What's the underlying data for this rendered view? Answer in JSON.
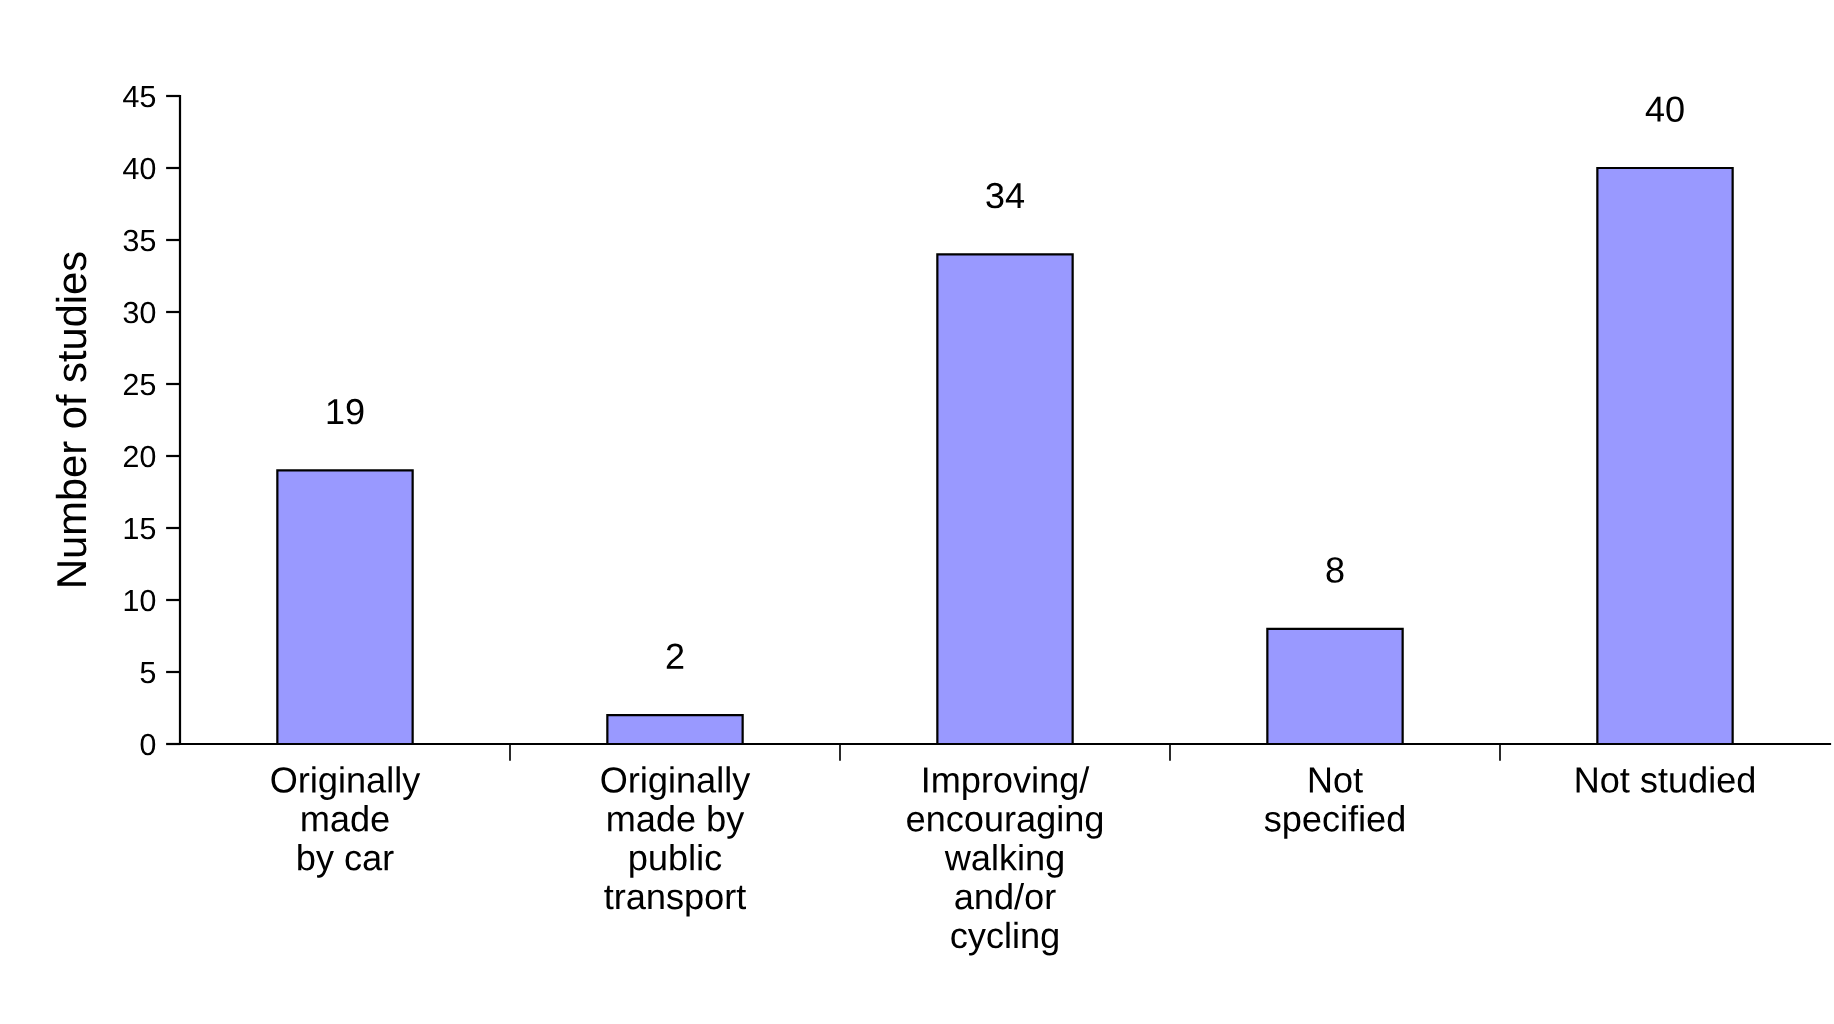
{
  "chart_data": {
    "type": "bar",
    "ylabel": "Number of studies",
    "categories": [
      "Originally\nmade\nby car",
      "Originally\nmade by\npublic\ntransport",
      "Improving/\nencouraging\nwalking\nand/or\ncycling",
      "Not\nspecified",
      "Not studied"
    ],
    "values": [
      19,
      2,
      34,
      8,
      40
    ],
    "color": "#9999ff",
    "ylim": [
      0,
      45
    ],
    "yticks": [
      0,
      5,
      10,
      15,
      20,
      25,
      30,
      35,
      40,
      45
    ],
    "grid": false,
    "data_labels": true
  }
}
